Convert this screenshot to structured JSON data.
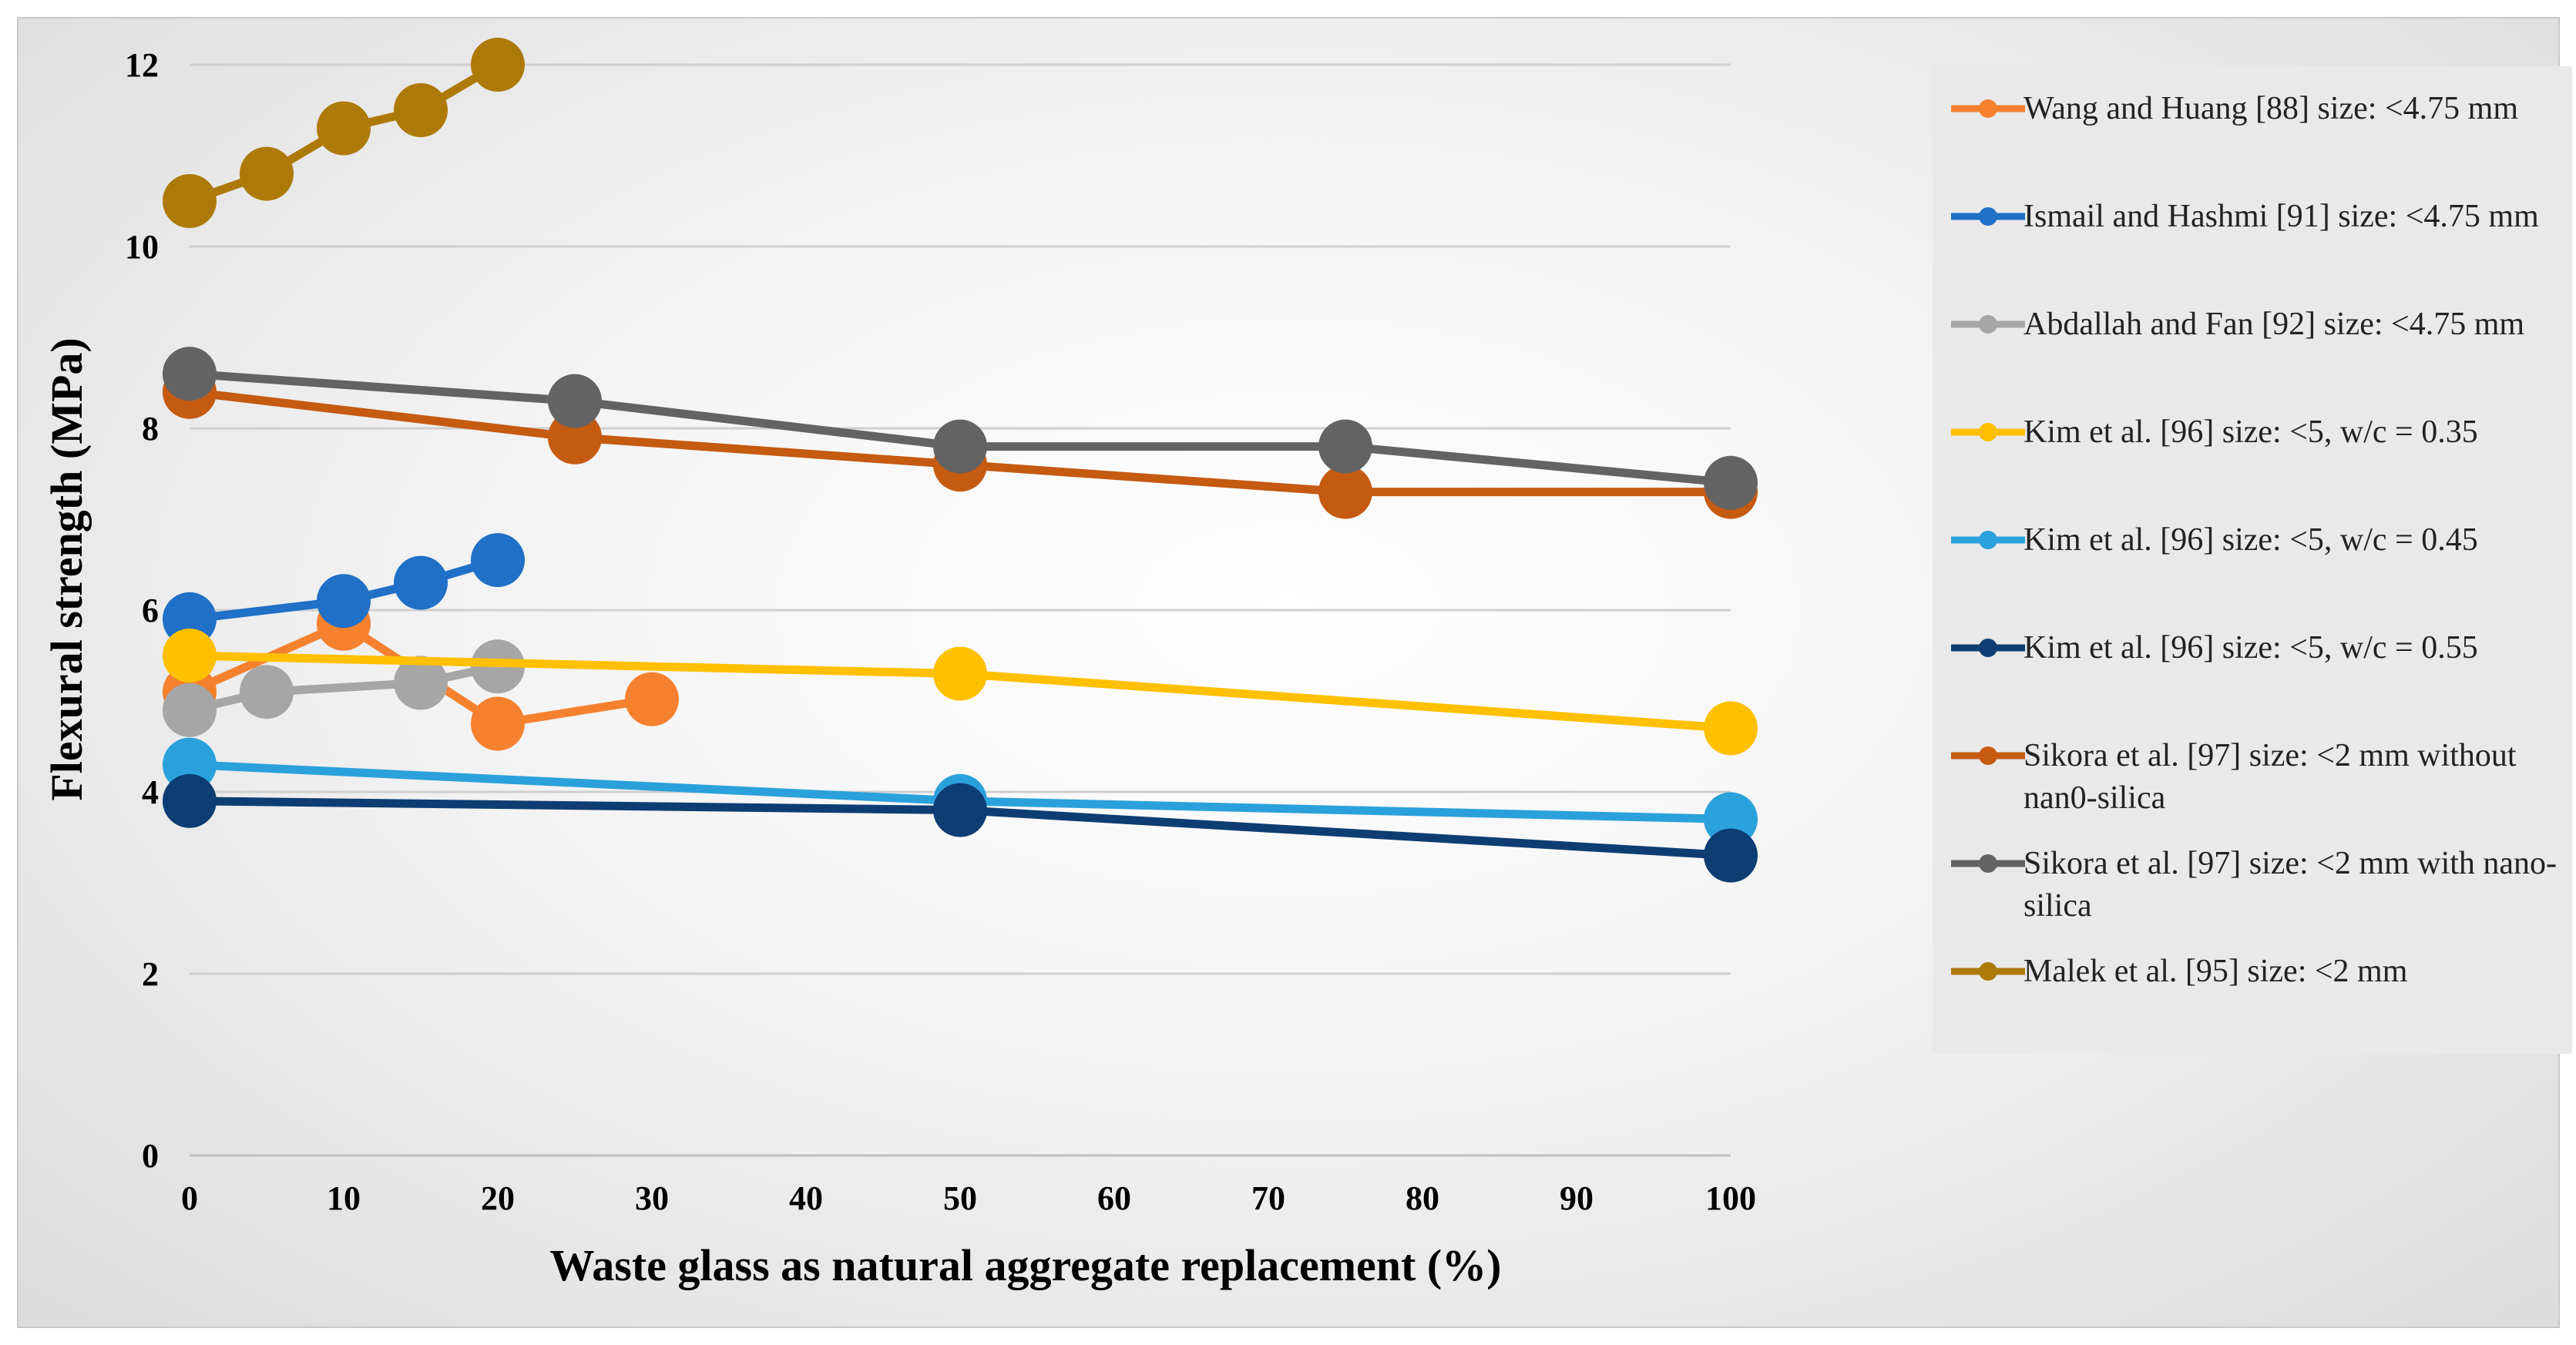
{
  "chart_data": {
    "type": "line",
    "title": "",
    "xlabel": "Waste glass as natural aggregate replacement (%)",
    "ylabel": "Flexural strength (MPa)",
    "xlim": [
      0,
      100
    ],
    "ylim": [
      0,
      12
    ],
    "xticks": [
      0,
      10,
      20,
      30,
      40,
      50,
      60,
      70,
      80,
      90,
      100
    ],
    "yticks": [
      0,
      2,
      4,
      6,
      8,
      10,
      12
    ],
    "grid": "horizontal",
    "legend_position": "right",
    "series": [
      {
        "name": "Wang and Huang [88] size: <4.75 mm",
        "color": "#f5812f",
        "x": [
          0,
          10,
          20,
          30
        ],
        "y": [
          5.1,
          5.85,
          4.75,
          5.02
        ]
      },
      {
        "name": "Ismail and Hashmi [91] size: <4.75 mm",
        "color": "#1f70c6",
        "x": [
          0,
          10,
          15,
          20
        ],
        "y": [
          5.9,
          6.1,
          6.3,
          6.55
        ]
      },
      {
        "name": "Abdallah and Fan [92] size: <4.75 mm",
        "color": "#a6a6a6",
        "x": [
          0,
          5,
          15,
          20
        ],
        "y": [
          4.9,
          5.1,
          5.2,
          5.38
        ]
      },
      {
        "name": "Kim et al. [96] size: <5, w/c =  0.35",
        "color": "#ffc000",
        "x": [
          0,
          50,
          100
        ],
        "y": [
          5.5,
          5.3,
          4.7
        ]
      },
      {
        "name": "Kim et al. [96] size: <5, w/c =  0.45",
        "color": "#2ba1dc",
        "x": [
          0,
          50,
          100
        ],
        "y": [
          4.3,
          3.9,
          3.7
        ]
      },
      {
        "name": "Kim et al. [96] size: <5, w/c =  0.55",
        "color": "#0d3d73",
        "x": [
          0,
          50,
          100
        ],
        "y": [
          3.9,
          3.8,
          3.3
        ]
      },
      {
        "name": "Sikora et al. [97] size: <2 mm without nan0-silica",
        "color": "#c55a11",
        "x": [
          0,
          25,
          50,
          75,
          100
        ],
        "y": [
          8.4,
          7.9,
          7.6,
          7.3,
          7.3
        ]
      },
      {
        "name": "Sikora et al. [97] size: <2 mm with nano-silica",
        "color": "#636363",
        "x": [
          0,
          25,
          50,
          75,
          100
        ],
        "y": [
          8.6,
          8.3,
          7.8,
          7.8,
          7.4
        ]
      },
      {
        "name": "Malek et al. [95] size: <2 mm",
        "color": "#ad7a0a",
        "x": [
          0,
          5,
          10,
          15,
          20
        ],
        "y": [
          10.5,
          10.8,
          11.3,
          11.5,
          12.0
        ]
      }
    ]
  }
}
